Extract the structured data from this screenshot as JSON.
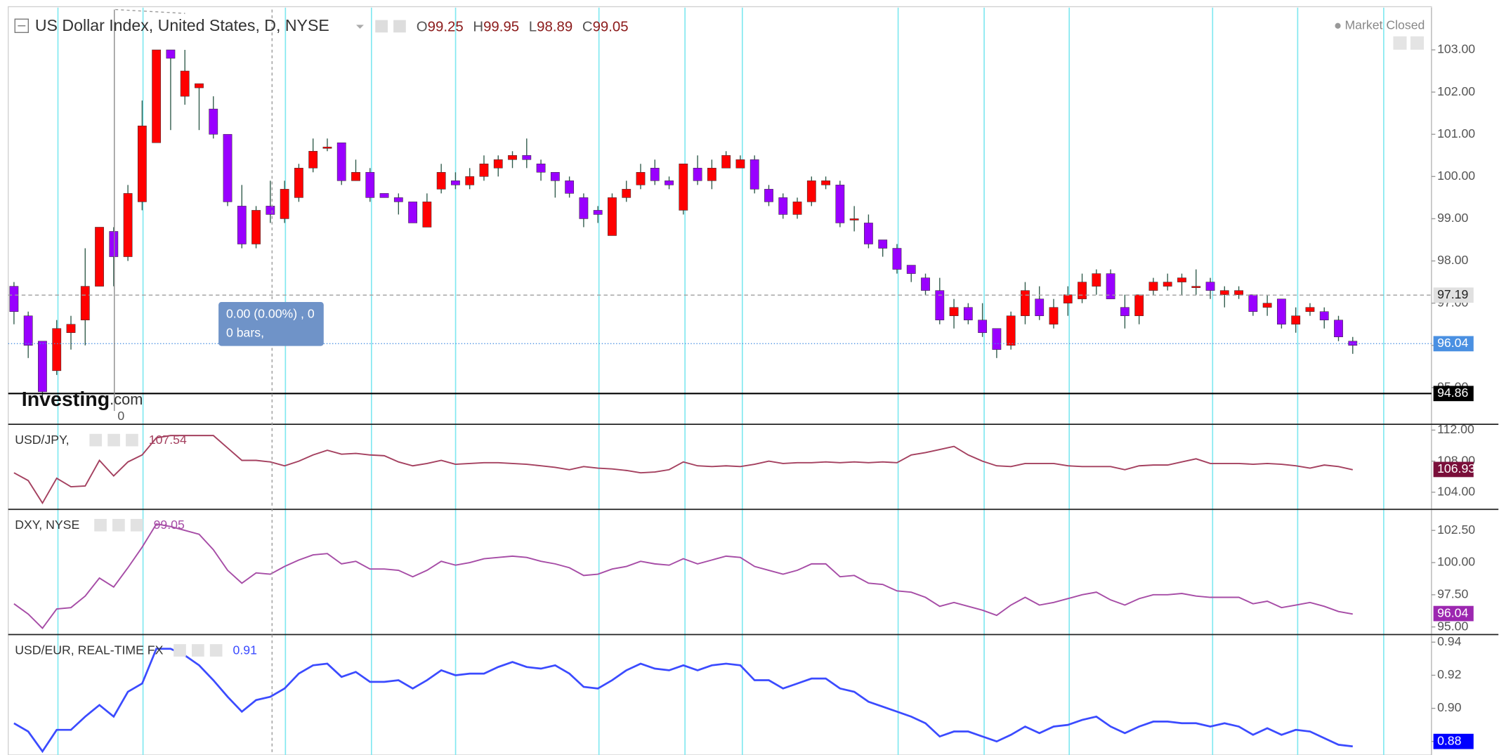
{
  "header": {
    "title": "US Dollar Index, United States, D, NYSE",
    "ohlc": [
      {
        "label": "O",
        "value": 99.25
      },
      {
        "label": "H",
        "value": 99.95
      },
      {
        "label": "L",
        "value": 98.89
      },
      {
        "label": "C",
        "value": 99.05
      }
    ]
  },
  "market_status": "Market Closed",
  "tooltip": [
    "0.00 (0.00%) , 0",
    "0 bars,"
  ],
  "logo": [
    "Investing",
    ".com"
  ],
  "x_label": "0",
  "chart_data": [
    {
      "type": "candlestick",
      "up_color": "#ff0000",
      "down_color": "#9900ff",
      "wick_color": "#2f5a4a",
      "ylim": [
        94.13,
        104.0
      ],
      "yticks": [
        {
          "value": 95,
          "label": "95.00"
        },
        {
          "value": 96,
          "label": "96.00"
        },
        {
          "value": 97,
          "label": "97.00"
        },
        {
          "value": 98,
          "label": "98.00"
        },
        {
          "value": 99,
          "label": "99.00"
        },
        {
          "value": 100,
          "label": "100.00"
        },
        {
          "value": 101,
          "label": "101.00"
        },
        {
          "value": 102,
          "label": "102.00"
        },
        {
          "value": 103,
          "label": "103.00"
        }
      ],
      "open": [
        97.4,
        96.7,
        96.1,
        95.4,
        96.3,
        96.6,
        97.4,
        98.7,
        98.1,
        99.4,
        100.8,
        103.0,
        101.9,
        102.1,
        101.6,
        101.0,
        99.3,
        98.4,
        99.3,
        99.0,
        99.5,
        100.2,
        100.7,
        100.8,
        99.9,
        100.1,
        99.6,
        99.5,
        99.4,
        98.8,
        99.7,
        99.9,
        99.8,
        100.0,
        100.2,
        100.4,
        100.5,
        100.3,
        100.1,
        99.9,
        99.5,
        99.2,
        98.6,
        99.5,
        99.8,
        100.2,
        99.9,
        99.2,
        100.2,
        99.9,
        100.2,
        100.2,
        100.4,
        99.7,
        99.5,
        99.1,
        99.4,
        99.8,
        99.8,
        99.0,
        98.9,
        98.5,
        98.3,
        97.9,
        97.6,
        97.3,
        96.7,
        96.9,
        96.6,
        96.4,
        96.0,
        96.7,
        97.1,
        96.5,
        97.0,
        97.1,
        97.4,
        97.7,
        96.9,
        96.7,
        97.3,
        97.4,
        97.5,
        97.4,
        97.5,
        97.2,
        97.2,
        97.2,
        96.9,
        97.1,
        96.5,
        96.8,
        96.8,
        96.6,
        96.1
      ],
      "high": [
        97.5,
        96.8,
        96.1,
        96.6,
        96.7,
        98.3,
        98.8,
        98.8,
        99.8,
        101.8,
        103.0,
        103.0,
        103.0,
        102.2,
        101.9,
        101.0,
        99.8,
        99.3,
        99.9,
        99.9,
        100.3,
        100.9,
        100.9,
        100.8,
        100.4,
        100.2,
        99.6,
        99.6,
        99.4,
        99.6,
        100.3,
        100.1,
        100.2,
        100.5,
        100.5,
        100.6,
        100.9,
        100.4,
        100.1,
        100.0,
        99.6,
        99.3,
        99.6,
        99.9,
        100.3,
        100.4,
        100.0,
        100.3,
        100.5,
        100.4,
        100.6,
        100.5,
        100.5,
        99.8,
        99.6,
        99.5,
        100.0,
        100.0,
        99.9,
        99.3,
        99.1,
        98.5,
        98.4,
        97.9,
        97.7,
        97.6,
        97.1,
        97.0,
        97.0,
        96.4,
        96.8,
        97.5,
        97.4,
        97.1,
        97.4,
        97.7,
        97.8,
        97.8,
        97.2,
        97.2,
        97.6,
        97.7,
        97.7,
        97.8,
        97.6,
        97.4,
        97.4,
        97.2,
        97.2,
        97.1,
        96.9,
        97.0,
        96.9,
        96.7,
        96.2
      ],
      "low": [
        96.5,
        95.7,
        94.8,
        95.3,
        95.9,
        96.0,
        97.4,
        97.4,
        98.0,
        99.2,
        100.8,
        101.1,
        101.7,
        101.1,
        100.9,
        99.3,
        98.3,
        98.3,
        98.9,
        98.9,
        99.4,
        100.1,
        100.6,
        99.8,
        99.9,
        99.4,
        99.5,
        99.1,
        98.9,
        98.8,
        99.6,
        99.7,
        99.7,
        99.9,
        100.0,
        100.2,
        100.2,
        99.9,
        99.5,
        99.5,
        98.8,
        98.9,
        98.6,
        99.4,
        99.7,
        99.8,
        99.7,
        99.1,
        99.8,
        99.7,
        100.2,
        100.2,
        99.6,
        99.3,
        99.0,
        99.0,
        99.3,
        99.7,
        98.8,
        98.7,
        98.3,
        98.1,
        97.7,
        97.5,
        97.2,
        96.5,
        96.4,
        96.5,
        96.2,
        95.7,
        95.9,
        96.5,
        96.6,
        96.4,
        96.7,
        97.0,
        97.2,
        97.1,
        96.4,
        96.5,
        97.2,
        97.3,
        97.2,
        97.2,
        97.1,
        96.9,
        97.1,
        96.7,
        96.7,
        96.4,
        96.3,
        96.7,
        96.4,
        96.1,
        95.8
      ],
      "close": [
        96.8,
        96.0,
        94.9,
        96.4,
        96.5,
        97.4,
        98.8,
        98.1,
        99.6,
        101.2,
        103.0,
        102.8,
        102.5,
        102.2,
        101.0,
        99.4,
        98.4,
        99.2,
        99.1,
        99.7,
        100.2,
        100.6,
        100.7,
        99.9,
        100.1,
        99.5,
        99.5,
        99.4,
        98.9,
        99.4,
        100.1,
        99.8,
        100.0,
        100.3,
        100.4,
        100.5,
        100.4,
        100.1,
        99.9,
        99.6,
        99.0,
        99.1,
        99.5,
        99.7,
        100.1,
        99.9,
        99.8,
        100.3,
        99.9,
        100.2,
        100.5,
        100.4,
        99.7,
        99.4,
        99.1,
        99.4,
        99.9,
        99.9,
        98.9,
        99.0,
        98.4,
        98.3,
        97.8,
        97.7,
        97.3,
        96.6,
        96.9,
        96.6,
        96.3,
        95.9,
        96.7,
        97.3,
        96.7,
        96.9,
        97.2,
        97.5,
        97.7,
        97.1,
        96.7,
        97.2,
        97.5,
        97.5,
        97.6,
        97.4,
        97.3,
        97.3,
        97.3,
        96.8,
        97.0,
        96.5,
        96.7,
        96.9,
        96.6,
        96.2,
        96.0
      ],
      "price_lines": [
        {
          "value": 97.19,
          "color": "#9e9e9e",
          "tag_color": "#e0e0e0",
          "text_color": "#222222"
        },
        {
          "value": 96.04,
          "color": "#4a90e2",
          "tag_color": "#4a90e2",
          "text_color": "#ffffff"
        },
        {
          "value": 94.86,
          "color": "#000000",
          "tag_color": "#000000",
          "text_color": "#ffffff"
        }
      ]
    },
    {
      "type": "line",
      "title": "USD/JPY,",
      "legend_value": 107.54,
      "color": "#a4405f",
      "ylim": [
        101.91,
        112.62
      ],
      "yticks": [
        {
          "value": 104,
          "label": "104.00"
        },
        {
          "value": 108,
          "label": "108.00"
        },
        {
          "value": 112,
          "label": "112.00"
        }
      ],
      "values": [
        106.5,
        105.5,
        102.6,
        105.8,
        104.7,
        104.8,
        108.1,
        106.1,
        107.9,
        108.8,
        111.0,
        111.3,
        111.3,
        111.3,
        111.3,
        109.7,
        108.1,
        108.1,
        107.9,
        107.4,
        108.0,
        108.8,
        109.4,
        108.9,
        109.0,
        108.8,
        108.7,
        107.9,
        107.4,
        107.7,
        108.1,
        107.6,
        107.7,
        107.8,
        107.8,
        107.7,
        107.6,
        107.4,
        107.2,
        106.9,
        107.3,
        107.1,
        107.0,
        106.8,
        106.5,
        106.6,
        106.9,
        107.9,
        107.4,
        107.3,
        107.4,
        107.3,
        107.6,
        108.0,
        107.7,
        107.8,
        107.8,
        107.9,
        107.8,
        107.9,
        107.8,
        107.9,
        107.8,
        108.8,
        109.1,
        109.5,
        109.9,
        108.8,
        108.0,
        107.4,
        107.3,
        107.7,
        107.7,
        107.7,
        107.4,
        107.3,
        107.3,
        107.3,
        106.9,
        107.4,
        107.5,
        107.5,
        107.9,
        108.3,
        107.7,
        107.7,
        107.7,
        107.6,
        107.7,
        107.6,
        107.4,
        107.1,
        107.5,
        107.3,
        106.9
      ],
      "last_tag": {
        "value": 106.93,
        "tag_color": "#7a0f3a"
      }
    },
    {
      "type": "line",
      "title": "DXY, NYSE",
      "legend_value": 99.05,
      "color": "#a64ca6",
      "ylim": [
        94.48,
        104.06
      ],
      "yticks": [
        {
          "value": 95,
          "label": "95.00"
        },
        {
          "value": 97.5,
          "label": "97.50"
        },
        {
          "value": 100,
          "label": "100.00"
        },
        {
          "value": 102.5,
          "label": "102.50"
        }
      ],
      "values": [
        96.8,
        96.0,
        94.9,
        96.4,
        96.5,
        97.4,
        98.8,
        98.1,
        99.6,
        101.2,
        103.0,
        102.8,
        102.5,
        102.2,
        101.0,
        99.4,
        98.4,
        99.2,
        99.1,
        99.7,
        100.2,
        100.6,
        100.7,
        99.9,
        100.1,
        99.5,
        99.5,
        99.4,
        98.9,
        99.4,
        100.1,
        99.8,
        100.0,
        100.3,
        100.4,
        100.5,
        100.4,
        100.1,
        99.9,
        99.6,
        99.0,
        99.1,
        99.5,
        99.7,
        100.1,
        99.9,
        99.8,
        100.3,
        99.9,
        100.2,
        100.5,
        100.4,
        99.7,
        99.4,
        99.1,
        99.4,
        99.9,
        99.9,
        98.9,
        99.0,
        98.4,
        98.3,
        97.8,
        97.7,
        97.3,
        96.6,
        96.9,
        96.6,
        96.3,
        95.9,
        96.7,
        97.3,
        96.7,
        96.9,
        97.2,
        97.5,
        97.7,
        97.1,
        96.7,
        97.2,
        97.5,
        97.5,
        97.6,
        97.4,
        97.3,
        97.3,
        97.3,
        96.8,
        97.0,
        96.5,
        96.7,
        96.9,
        96.6,
        96.2,
        96.0
      ],
      "last_tag": {
        "value": 96.04,
        "tag_color": "#9c27b0"
      }
    },
    {
      "type": "line",
      "title": "USD/EUR, REAL-TIME FX",
      "legend_value": 0.91,
      "color": "#3b4bff",
      "ylim": [
        0.8718,
        0.944
      ],
      "yticks": [
        0.88,
        {
          "value": 0.9,
          "label": "0.90"
        },
        0.92,
        0.94
      ],
      "values": [
        0.891,
        0.886,
        0.874,
        0.887,
        0.887,
        0.895,
        0.902,
        0.895,
        0.91,
        0.915,
        0.936,
        0.936,
        0.932,
        0.926,
        0.917,
        0.907,
        0.898,
        0.905,
        0.907,
        0.912,
        0.921,
        0.926,
        0.927,
        0.919,
        0.922,
        0.916,
        0.916,
        0.917,
        0.912,
        0.917,
        0.923,
        0.92,
        0.921,
        0.921,
        0.925,
        0.928,
        0.925,
        0.924,
        0.926,
        0.921,
        0.913,
        0.912,
        0.917,
        0.923,
        0.927,
        0.924,
        0.923,
        0.926,
        0.923,
        0.926,
        0.927,
        0.926,
        0.917,
        0.917,
        0.912,
        0.915,
        0.918,
        0.918,
        0.912,
        0.91,
        0.904,
        0.901,
        0.898,
        0.895,
        0.891,
        0.883,
        0.886,
        0.886,
        0.883,
        0.88,
        0.884,
        0.889,
        0.885,
        0.889,
        0.89,
        0.893,
        0.895,
        0.889,
        0.885,
        0.889,
        0.892,
        0.892,
        0.891,
        0.891,
        0.889,
        0.891,
        0.889,
        0.884,
        0.888,
        0.884,
        0.887,
        0.886,
        0.882,
        0.878,
        0.877
      ],
      "last_tag": {
        "value": 0.88,
        "tag_color": "#0000ff"
      }
    }
  ]
}
